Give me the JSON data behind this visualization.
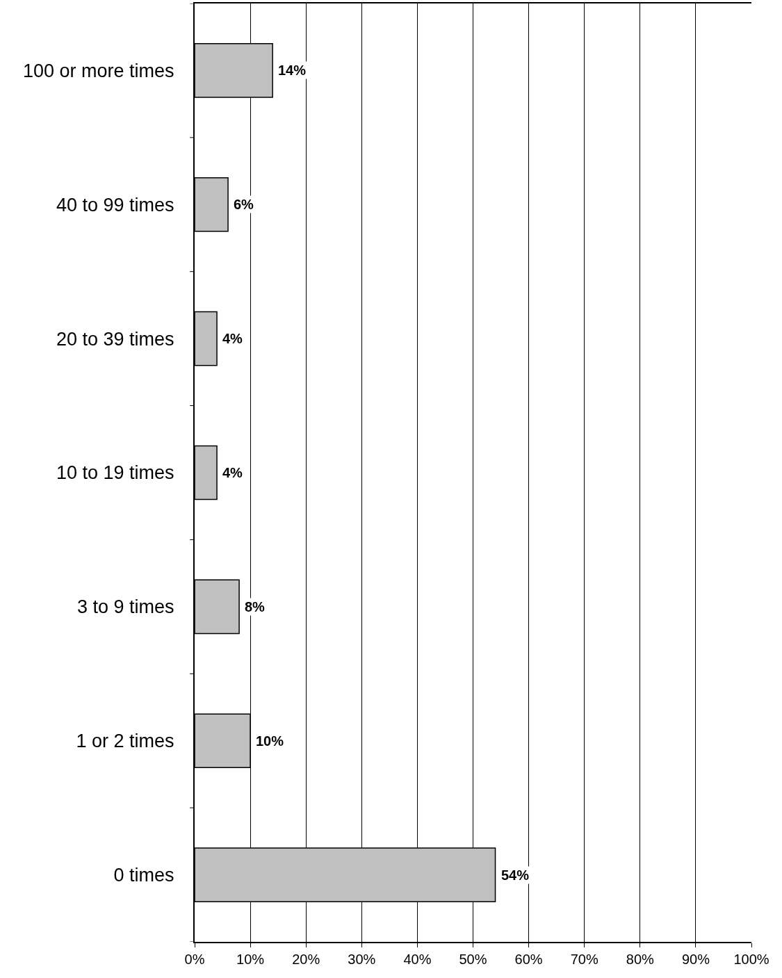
{
  "chart_data": {
    "type": "bar",
    "orientation": "horizontal",
    "categories": [
      "100 or more times",
      "40 to 99 times",
      "20 to 39 times",
      "10 to 19 times",
      "3 to 9 times",
      "1 or 2 times",
      "0 times"
    ],
    "values": [
      14,
      6,
      4,
      4,
      8,
      10,
      54
    ],
    "color": "#c0c0c0",
    "value_labels": [
      "14%",
      "6%",
      "4%",
      "4%",
      "8%",
      "10%",
      "54%"
    ],
    "xlim": [
      0,
      100
    ],
    "xticks": [
      {
        "value": 0,
        "label": "0%"
      },
      {
        "value": 10,
        "label": "10%"
      },
      {
        "value": 20,
        "label": "20%"
      },
      {
        "value": 30,
        "label": "30%"
      },
      {
        "value": 40,
        "label": "40%"
      },
      {
        "value": 50,
        "label": "50%"
      },
      {
        "value": 60,
        "label": "60%"
      },
      {
        "value": 70,
        "label": "70%"
      },
      {
        "value": 80,
        "label": "80%"
      },
      {
        "value": 90,
        "label": "90%"
      },
      {
        "value": 100,
        "label": "100%"
      }
    ],
    "grid": "x"
  }
}
